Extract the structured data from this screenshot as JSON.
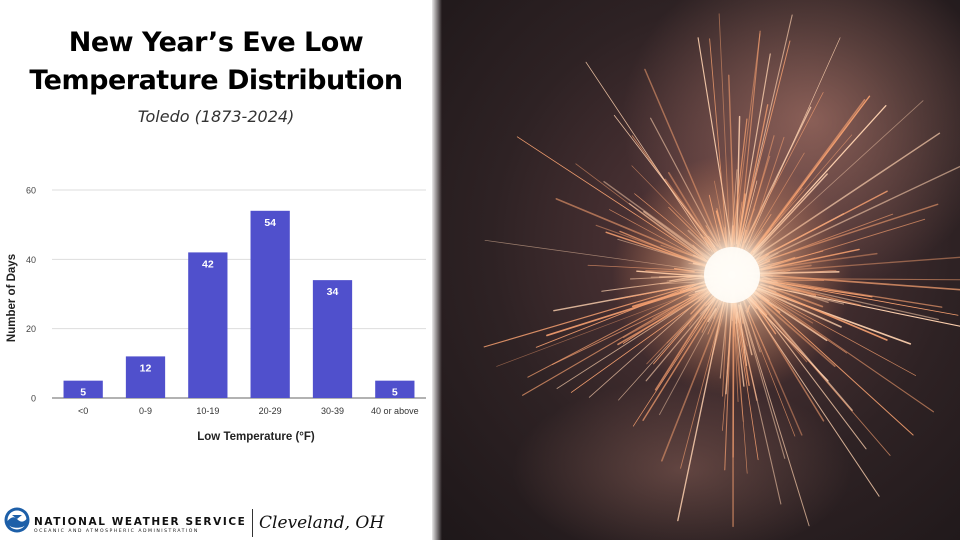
{
  "header": {
    "title_line1": "New Year’s Eve Low",
    "title_line2": "Temperature Distribution",
    "subtitle": "Toledo (1873-2024)"
  },
  "chart_data": {
    "type": "bar",
    "categories": [
      "<0",
      "0-9",
      "10-19",
      "20-29",
      "30-39",
      "40 or above"
    ],
    "values": [
      5,
      12,
      42,
      54,
      34,
      5
    ],
    "data_labels": [
      "5",
      "12",
      "42",
      "54",
      "34",
      "5"
    ],
    "xlabel": "Low Temperature (°F)",
    "ylabel": "Number of Days",
    "ylim": [
      0,
      60
    ],
    "yticks": [
      0,
      20,
      40,
      60
    ],
    "ytick_labels": [
      "0",
      "20",
      "40",
      "60"
    ],
    "grid": true,
    "bar_color": "#5050cc"
  },
  "footer": {
    "agency": "NATIONAL WEATHER SERVICE",
    "agency_sub": "OCEANIC AND ATMOSPHERIC ADMINISTRATION",
    "office": "Cleveland, OH",
    "logo_icon": "noaa-logo-icon"
  },
  "photo": {
    "icon": "sparkler-photo",
    "colors": {
      "background": "#2a1d20",
      "glow": "#fff4e6",
      "spark": "#f6a070"
    }
  }
}
